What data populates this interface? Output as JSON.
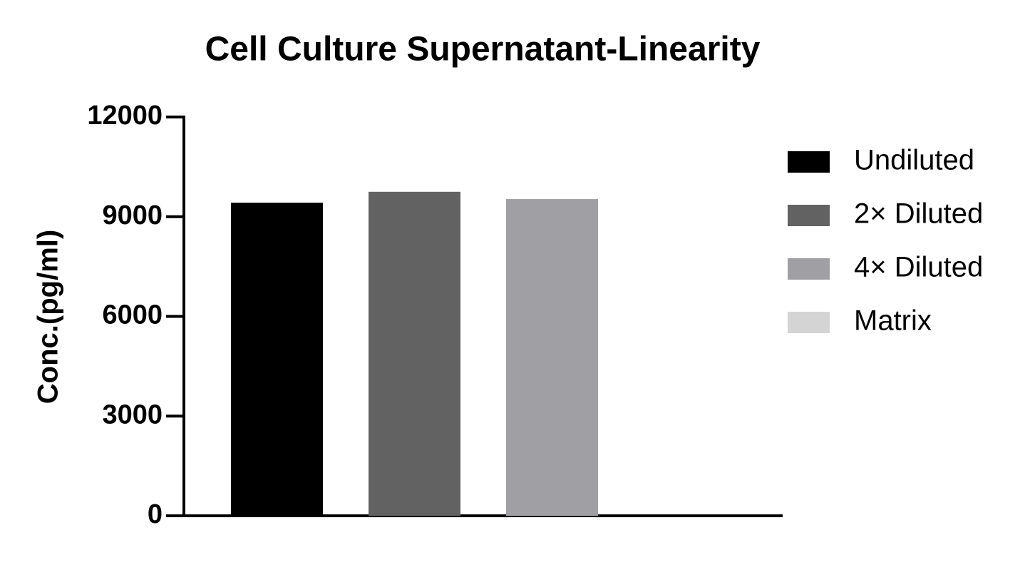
{
  "chart_data": {
    "type": "bar",
    "title": "Cell Culture Supernatant-Linearity",
    "ylabel": "Conc.(pg/ml)",
    "categories": [
      null
    ],
    "series": [
      {
        "name": "Undiluted",
        "color": "#000000",
        "values": [
          9420
        ]
      },
      {
        "name": "2× Diluted",
        "color": "#626262",
        "values": [
          9750
        ]
      },
      {
        "name": "4× Diluted",
        "color": "#a0a0a4",
        "values": [
          9530
        ]
      },
      {
        "name": "Matrix",
        "color": "#d4d4d4",
        "values": [
          0
        ]
      }
    ],
    "ylim": [
      0,
      12000
    ],
    "yticks": [
      0,
      3000,
      6000,
      9000,
      12000
    ],
    "grid": false,
    "legend": "right"
  }
}
